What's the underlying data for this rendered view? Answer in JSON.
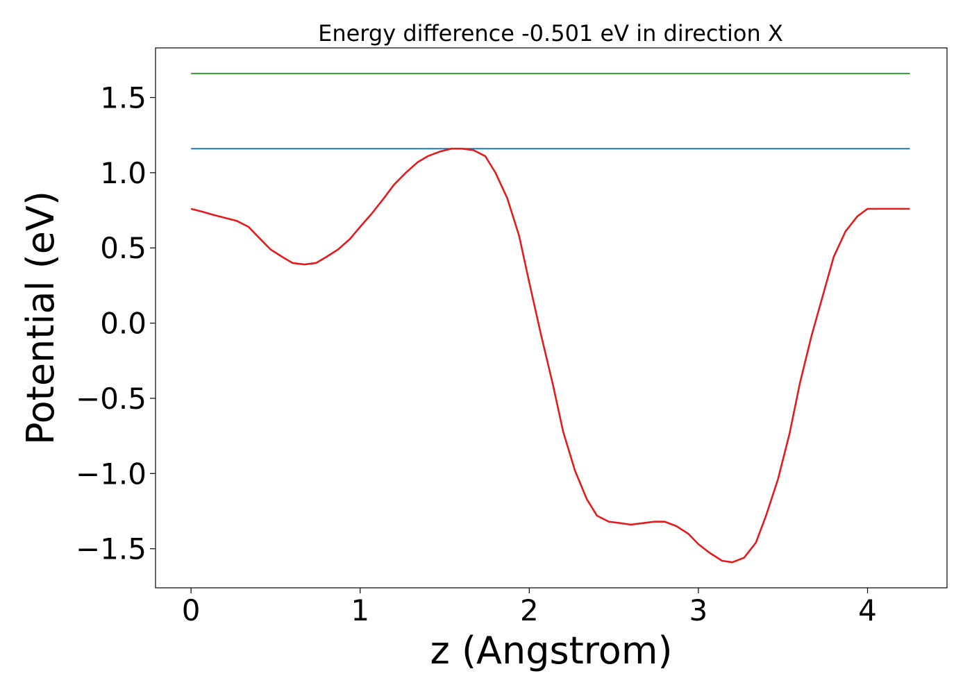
{
  "chart_data": {
    "type": "line",
    "title": "Energy difference -0.501 eV in direction X",
    "xlabel": "z (Angstrom)",
    "ylabel": "Potential (eV)",
    "xlim": [
      -0.21,
      4.47
    ],
    "ylim": [
      -1.76,
      1.83
    ],
    "xticks": [
      0,
      1,
      2,
      3,
      4
    ],
    "xtick_labels": [
      "0",
      "1",
      "2",
      "3",
      "4"
    ],
    "yticks": [
      -1.5,
      -1.0,
      -0.5,
      0.0,
      0.5,
      1.0,
      1.5
    ],
    "ytick_labels": [
      "−1.5",
      "−1.0",
      "−0.5",
      "0.0",
      "0.5",
      "1.0",
      "1.5"
    ],
    "grid": false,
    "series": [
      {
        "color": "#2ca02c",
        "x": [
          0,
          4.25
        ],
        "y": [
          1.66,
          1.66
        ]
      },
      {
        "color": "#1f77b4",
        "x": [
          0,
          4.25
        ],
        "y": [
          1.16,
          1.16
        ]
      },
      {
        "color": "#e41a1c",
        "x": [
          0,
          0.07,
          0.13,
          0.2,
          0.27,
          0.34,
          0.4,
          0.47,
          0.54,
          0.6,
          0.67,
          0.74,
          0.8,
          0.87,
          0.94,
          1.0,
          1.07,
          1.14,
          1.2,
          1.27,
          1.34,
          1.4,
          1.47,
          1.54,
          1.6,
          1.67,
          1.74,
          1.8,
          1.87,
          1.94,
          2.0,
          2.07,
          2.14,
          2.2,
          2.27,
          2.34,
          2.4,
          2.47,
          2.54,
          2.6,
          2.67,
          2.74,
          2.8,
          2.87,
          2.94,
          3.0,
          3.07,
          3.14,
          3.2,
          3.27,
          3.34,
          3.4,
          3.47,
          3.54,
          3.6,
          3.67,
          3.74,
          3.8,
          3.87,
          3.94,
          4.0,
          4.07,
          4.14,
          4.2,
          4.25
        ],
        "y": [
          0.76,
          0.74,
          0.72,
          0.7,
          0.68,
          0.64,
          0.57,
          0.49,
          0.44,
          0.4,
          0.39,
          0.4,
          0.44,
          0.49,
          0.56,
          0.64,
          0.73,
          0.83,
          0.92,
          1.0,
          1.07,
          1.11,
          1.14,
          1.16,
          1.16,
          1.15,
          1.11,
          1.0,
          0.83,
          0.58,
          0.27,
          -0.08,
          -0.41,
          -0.72,
          -0.98,
          -1.17,
          -1.28,
          -1.32,
          -1.33,
          -1.34,
          -1.33,
          -1.32,
          -1.32,
          -1.35,
          -1.4,
          -1.47,
          -1.53,
          -1.58,
          -1.59,
          -1.56,
          -1.46,
          -1.28,
          -1.04,
          -0.73,
          -0.4,
          -0.08,
          0.2,
          0.44,
          0.61,
          0.71,
          0.76,
          0.76,
          0.76,
          0.76,
          0.76
        ]
      }
    ]
  }
}
